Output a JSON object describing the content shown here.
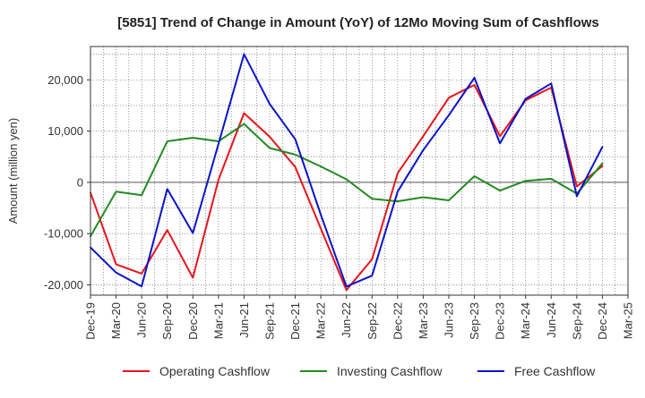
{
  "chart_data": {
    "type": "line",
    "title": "[5851]  Trend of Change in Amount (YoY) of 12Mo Moving Sum of Cashflows",
    "xlabel": "",
    "ylabel": "Amount (million yen)",
    "ylim": [
      -22000,
      26500
    ],
    "yticks": [
      -20000,
      -10000,
      0,
      10000,
      20000
    ],
    "ytick_labels": [
      "-20,000",
      "-10,000",
      "0",
      "10,000",
      "20,000"
    ],
    "categories": [
      "Dec-19",
      "Mar-20",
      "Jun-20",
      "Sep-20",
      "Dec-20",
      "Mar-21",
      "Jun-21",
      "Sep-21",
      "Dec-21",
      "Mar-22",
      "Jun-22",
      "Sep-22",
      "Dec-22",
      "Mar-23",
      "Jun-23",
      "Sep-23",
      "Dec-23",
      "Mar-24",
      "Jun-24",
      "Sep-24",
      "Dec-24",
      "Mar-25"
    ],
    "grid": true,
    "legend_position": "bottom",
    "series": [
      {
        "name": "Operating Cashflow",
        "color": "#e8141c",
        "values": [
          -2000,
          -16000,
          -17800,
          -9300,
          -18600,
          500,
          13500,
          8900,
          3000,
          -9000,
          -21000,
          -15000,
          1800,
          9000,
          16500,
          19000,
          9000,
          16000,
          18500,
          -800,
          3200,
          null
        ]
      },
      {
        "name": "Investing Cashflow",
        "color": "#228b22",
        "values": [
          -10500,
          -1800,
          -2500,
          8000,
          8700,
          8000,
          11400,
          6700,
          5400,
          3100,
          600,
          -3200,
          -3700,
          -2900,
          -3500,
          1200,
          -1600,
          300,
          700,
          -2200,
          3700,
          null
        ]
      },
      {
        "name": "Free Cashflow",
        "color": "#0a14c8",
        "values": [
          -12700,
          -17600,
          -20300,
          -1300,
          -9900,
          7500,
          25000,
          15300,
          8400,
          -6300,
          -20300,
          -18200,
          -1800,
          6300,
          13100,
          20400,
          7600,
          16300,
          19300,
          -2700,
          6900,
          null
        ]
      }
    ]
  }
}
